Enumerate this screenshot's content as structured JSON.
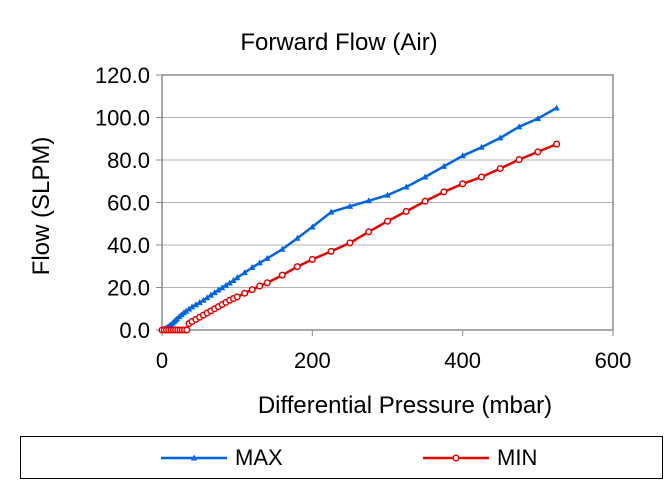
{
  "chart_data": {
    "type": "line",
    "title": "Forward Flow (Air)",
    "xlabel": "Differential Pressure (mbar)",
    "ylabel": "Flow (SLPM)",
    "xlim": [
      0,
      600
    ],
    "ylim": [
      0,
      120
    ],
    "x_ticks": [
      0,
      200,
      400,
      600
    ],
    "y_ticks": [
      "0.0",
      "20.0",
      "40.0",
      "60.0",
      "80.0",
      "100.0",
      "120.0"
    ],
    "grid": "horizontal",
    "legend": "bottom",
    "series": [
      {
        "name": "MAX",
        "color": "#0064E6",
        "marker": "triangle",
        "x": [
          0,
          2,
          4,
          6,
          8,
          10,
          12,
          14,
          16,
          18,
          20,
          23,
          26,
          29,
          32,
          36,
          40,
          45,
          50,
          55,
          60,
          65,
          70,
          75,
          80,
          85,
          90,
          95,
          100,
          110,
          120,
          130,
          140,
          160,
          180,
          200,
          225,
          250,
          275,
          300,
          325,
          350,
          375,
          400,
          425,
          450,
          475,
          500,
          525
        ],
        "y": [
          0.0,
          0.3,
          0.6,
          1.0,
          1.5,
          2.0,
          2.5,
          3.2,
          3.9,
          4.6,
          5.3,
          6.3,
          7.2,
          8.1,
          8.9,
          9.9,
          10.9,
          11.9,
          12.9,
          14.0,
          15.2,
          16.4,
          17.6,
          18.8,
          19.9,
          21.0,
          22.1,
          23.3,
          24.6,
          27.0,
          29.4,
          31.6,
          33.7,
          38.0,
          43.2,
          48.5,
          55.5,
          58.2,
          60.8,
          63.5,
          67.3,
          72.0,
          77.0,
          82.0,
          86.0,
          90.4,
          95.6,
          99.5,
          104.5
        ]
      },
      {
        "name": "MIN",
        "color": "#E60000",
        "marker": "circle",
        "x": [
          0,
          3,
          6,
          9,
          12,
          15,
          18,
          21,
          24,
          27,
          30,
          33,
          36,
          40,
          45,
          50,
          55,
          60,
          65,
          70,
          75,
          80,
          85,
          90,
          95,
          100,
          110,
          120,
          130,
          140,
          160,
          180,
          200,
          225,
          250,
          275,
          300,
          325,
          350,
          375,
          400,
          425,
          450,
          475,
          500,
          525
        ],
        "y": [
          0.0,
          0.0,
          0.0,
          0.0,
          0.0,
          0.0,
          0.0,
          0.0,
          0.0,
          0.0,
          0.0,
          0.0,
          3.0,
          4.0,
          5.0,
          6.0,
          7.0,
          8.0,
          9.0,
          10.0,
          11.0,
          12.0,
          13.0,
          14.0,
          14.8,
          15.6,
          17.3,
          19.0,
          20.7,
          22.2,
          25.8,
          29.8,
          33.2,
          37.0,
          41.0,
          46.2,
          51.2,
          55.8,
          60.6,
          65.0,
          68.8,
          72.0,
          76.0,
          80.2,
          83.8,
          87.5
        ]
      }
    ]
  }
}
